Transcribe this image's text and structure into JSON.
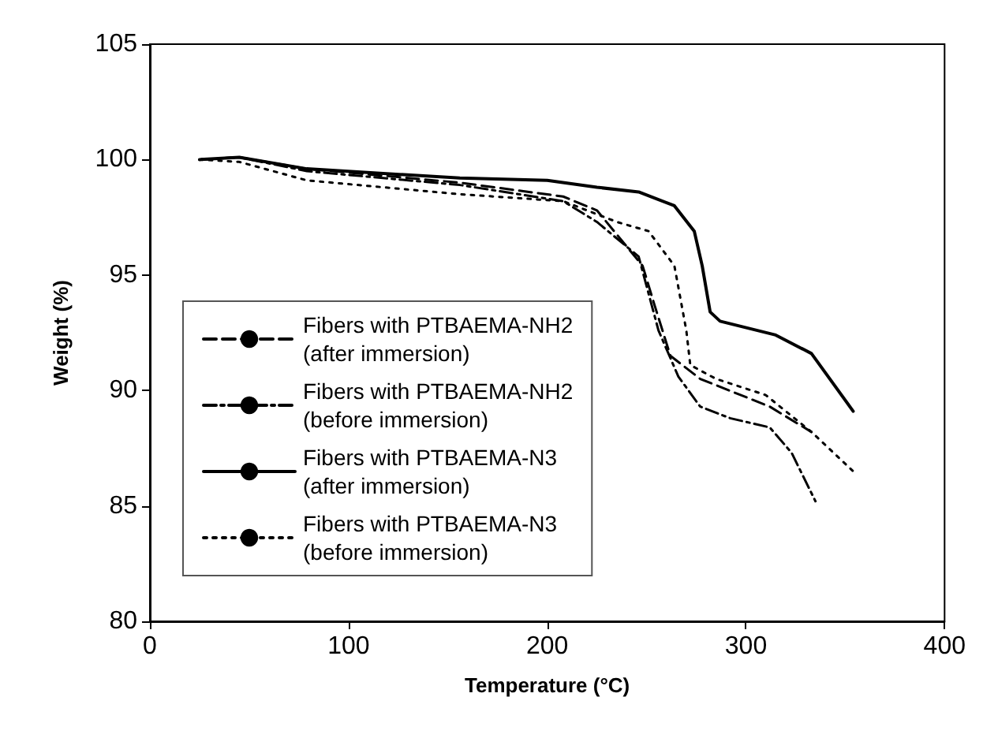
{
  "chart_data": {
    "type": "line",
    "xlabel": "Temperature (°C)",
    "ylabel": "Weight (%)",
    "xlim": [
      0,
      400
    ],
    "xticks": [
      0,
      100,
      200,
      300,
      400
    ],
    "ylim": [
      80,
      105
    ],
    "yticks": [
      80,
      85,
      90,
      95,
      100,
      105
    ],
    "grid": false,
    "legend": "bottom left",
    "marker": "none",
    "series": [
      {
        "name": "Fibers with PTBAEMA-NH2\n(after immersion)",
        "color": "#000000",
        "line_style": "dashed",
        "x": [
          25,
          45,
          79,
          156,
          208,
          225,
          248,
          254,
          262,
          277,
          312,
          333
        ],
        "values": [
          100,
          100.1,
          99.6,
          99.0,
          98.4,
          97.8,
          95.4,
          93.7,
          91.5,
          90.5,
          89.3,
          88.2
        ]
      },
      {
        "name": "Fibers with PTBAEMA-NH2\n(before immersion)",
        "color": "#000000",
        "line_style": "dashdot",
        "x": [
          25,
          45,
          79,
          156,
          208,
          225,
          246,
          256,
          266,
          277,
          292,
          312,
          323,
          335
        ],
        "values": [
          100,
          100.1,
          99.5,
          98.9,
          98.2,
          97.3,
          95.8,
          92.6,
          90.6,
          89.3,
          88.8,
          88.4,
          87.3,
          85.2
        ]
      },
      {
        "name": "Fibers with PTBAEMA-N3\n(after immersion)",
        "color": "#000000",
        "line_style": "solid",
        "x": [
          25,
          45,
          79,
          156,
          200,
          225,
          246,
          264,
          274,
          278,
          282,
          287,
          315,
          333,
          354
        ],
        "values": [
          100,
          100.1,
          99.6,
          99.2,
          99.1,
          98.8,
          98.6,
          98.0,
          96.9,
          95.4,
          93.4,
          93.0,
          92.4,
          91.6,
          89.1
        ]
      },
      {
        "name": "Fibers with PTBAEMA-N3\n(before immersion)",
        "color": "#000000",
        "line_style": "dotted",
        "x": [
          25,
          45,
          79,
          156,
          208,
          235,
          251,
          264,
          270,
          272,
          285,
          310,
          333,
          354
        ],
        "values": [
          100,
          99.9,
          99.1,
          98.5,
          98.2,
          97.3,
          96.9,
          95.4,
          92.6,
          91.1,
          90.5,
          89.8,
          88.2,
          86.5
        ]
      }
    ]
  }
}
